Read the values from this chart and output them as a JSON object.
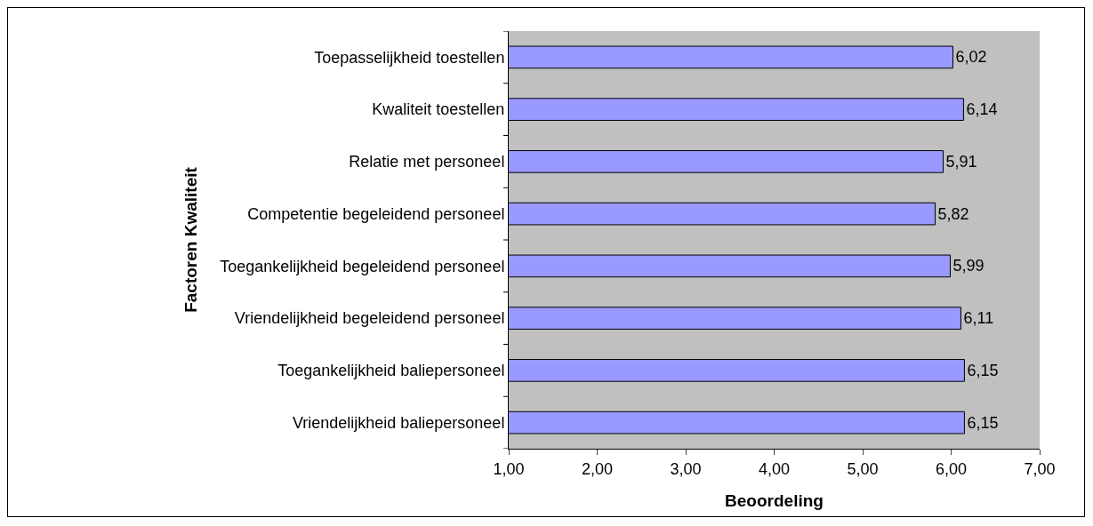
{
  "chart_data": {
    "type": "bar",
    "orientation": "horizontal",
    "xlabel": "Beoordeling",
    "ylabel": "Factoren Kwaliteit",
    "categories": [
      "Toepasselijkheid toestellen",
      "Kwaliteit toestellen",
      "Relatie met personeel",
      "Competentie begeleidend personeel",
      "Toegankelijkheid begeleidend personeel",
      "Vriendelijkheid begeleidend personeel",
      "Toegankelijkheid baliepersoneel",
      "Vriendelijkheid baliepersoneel"
    ],
    "values": [
      6.02,
      6.14,
      5.91,
      5.82,
      5.99,
      6.11,
      6.15,
      6.15
    ],
    "value_labels": [
      "6,02",
      "6,14",
      "5,91",
      "5,82",
      "5,99",
      "6,11",
      "6,15",
      "6,15"
    ],
    "color": "#9999ff",
    "xlim": [
      1,
      7
    ],
    "xticks": [
      {
        "value": 1,
        "label": "1,00"
      },
      {
        "value": 2,
        "label": "2,00"
      },
      {
        "value": 3,
        "label": "3,00"
      },
      {
        "value": 4,
        "label": "4,00"
      },
      {
        "value": 5,
        "label": "5,00"
      },
      {
        "value": 6,
        "label": "6,00"
      },
      {
        "value": 7,
        "label": "7,00"
      }
    ],
    "grid": false,
    "legend": false
  }
}
